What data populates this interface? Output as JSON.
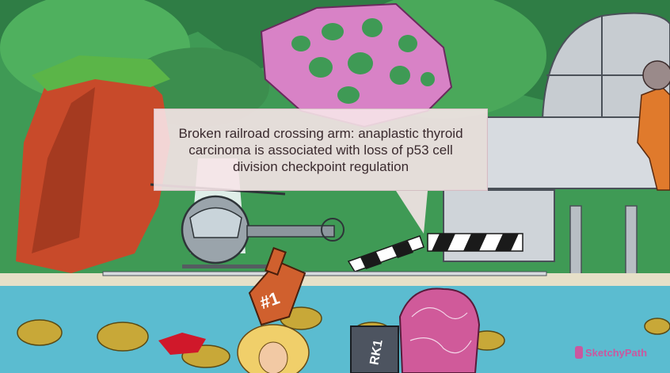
{
  "caption": {
    "text": "Broken railroad crossing arm: anaplastic thyroid carcinoma is associated with loss of p53 cell division checkpoint regulation"
  },
  "watermark": {
    "text": "SketchyPath",
    "color": "#de4696"
  },
  "scene": {
    "description_icons": [
      "waterfall",
      "helicopter",
      "observatory-dome",
      "crossing-arm",
      "sea-mines",
      "foam-finger",
      "rkt-tank",
      "brain-sign"
    ],
    "foam_finger_text": "#1",
    "tank_text": "RK1"
  }
}
